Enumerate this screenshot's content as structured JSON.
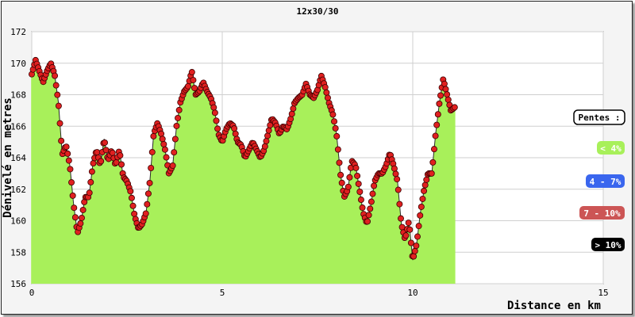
{
  "chart_data": {
    "type": "area",
    "title": "12x30/30",
    "xlabel": "Distance en km",
    "ylabel": "Dénivelé en metres",
    "xlim": [
      0,
      15
    ],
    "ylim": [
      156,
      172
    ],
    "x_ticks": [
      "0",
      "5",
      "10",
      "15"
    ],
    "y_ticks": [
      "156",
      "158",
      "160",
      "162",
      "164",
      "166",
      "168",
      "170",
      "172"
    ],
    "grid": true,
    "legend_position": "right",
    "legend_title": "Pentes :",
    "legend": [
      {
        "label": "< 4%",
        "color": "#a8f05a",
        "text_color": "#ffffff"
      },
      {
        "label": "4 - 7%",
        "color": "#3a66ee",
        "text_color": "#ffffff"
      },
      {
        "label": "7 - 10%",
        "color": "#cc5555",
        "text_color": "#ffffff"
      },
      {
        "label": "> 10%",
        "color": "#000000",
        "text_color": "#ffffff"
      }
    ],
    "series": [
      {
        "profile": [
          [
            0.0,
            169.3
          ],
          [
            0.1,
            170.2
          ],
          [
            0.2,
            169.5
          ],
          [
            0.3,
            168.8
          ],
          [
            0.4,
            169.5
          ],
          [
            0.5,
            170.0
          ],
          [
            0.6,
            169.3
          ],
          [
            0.7,
            167.5
          ],
          [
            0.8,
            164.2
          ],
          [
            0.9,
            164.8
          ],
          [
            1.0,
            163.5
          ],
          [
            1.1,
            161.0
          ],
          [
            1.2,
            159.2
          ],
          [
            1.3,
            160.0
          ],
          [
            1.4,
            161.5
          ],
          [
            1.5,
            161.5
          ],
          [
            1.6,
            163.5
          ],
          [
            1.7,
            164.5
          ],
          [
            1.8,
            163.5
          ],
          [
            1.9,
            165.2
          ],
          [
            2.0,
            163.8
          ],
          [
            2.1,
            164.5
          ],
          [
            2.2,
            163.5
          ],
          [
            2.3,
            164.5
          ],
          [
            2.4,
            162.8
          ],
          [
            2.5,
            162.5
          ],
          [
            2.6,
            161.8
          ],
          [
            2.7,
            160.3
          ],
          [
            2.8,
            159.5
          ],
          [
            2.9,
            159.8
          ],
          [
            3.0,
            160.5
          ],
          [
            3.1,
            162.5
          ],
          [
            3.2,
            165.5
          ],
          [
            3.3,
            166.2
          ],
          [
            3.4,
            165.5
          ],
          [
            3.5,
            164.5
          ],
          [
            3.6,
            163.0
          ],
          [
            3.7,
            163.5
          ],
          [
            3.8,
            166.0
          ],
          [
            3.9,
            167.5
          ],
          [
            4.0,
            168.2
          ],
          [
            4.1,
            168.5
          ],
          [
            4.2,
            169.5
          ],
          [
            4.3,
            168.0
          ],
          [
            4.4,
            168.2
          ],
          [
            4.5,
            168.8
          ],
          [
            4.6,
            168.2
          ],
          [
            4.7,
            167.8
          ],
          [
            4.8,
            167.0
          ],
          [
            4.9,
            165.5
          ],
          [
            5.0,
            165.0
          ],
          [
            5.1,
            165.8
          ],
          [
            5.2,
            166.2
          ],
          [
            5.3,
            166.0
          ],
          [
            5.4,
            165.0
          ],
          [
            5.5,
            164.8
          ],
          [
            5.6,
            164.0
          ],
          [
            5.7,
            164.5
          ],
          [
            5.8,
            165.0
          ],
          [
            5.9,
            164.5
          ],
          [
            6.0,
            164.0
          ],
          [
            6.1,
            164.5
          ],
          [
            6.2,
            165.5
          ],
          [
            6.3,
            166.5
          ],
          [
            6.4,
            166.2
          ],
          [
            6.5,
            165.5
          ],
          [
            6.6,
            166.0
          ],
          [
            6.7,
            165.8
          ],
          [
            6.8,
            166.5
          ],
          [
            6.9,
            167.5
          ],
          [
            7.0,
            167.8
          ],
          [
            7.1,
            168.0
          ],
          [
            7.2,
            168.7
          ],
          [
            7.3,
            168.0
          ],
          [
            7.4,
            167.8
          ],
          [
            7.5,
            168.3
          ],
          [
            7.6,
            169.2
          ],
          [
            7.7,
            168.5
          ],
          [
            7.8,
            167.5
          ],
          [
            7.9,
            166.8
          ],
          [
            8.0,
            165.5
          ],
          [
            8.1,
            163.0
          ],
          [
            8.2,
            161.5
          ],
          [
            8.3,
            162.0
          ],
          [
            8.4,
            163.8
          ],
          [
            8.5,
            163.5
          ],
          [
            8.6,
            162.0
          ],
          [
            8.7,
            160.5
          ],
          [
            8.8,
            159.8
          ],
          [
            8.9,
            161.0
          ],
          [
            9.0,
            162.5
          ],
          [
            9.1,
            163.0
          ],
          [
            9.2,
            163.0
          ],
          [
            9.3,
            163.5
          ],
          [
            9.4,
            164.3
          ],
          [
            9.5,
            163.5
          ],
          [
            9.6,
            162.5
          ],
          [
            9.7,
            159.8
          ],
          [
            9.8,
            158.8
          ],
          [
            9.9,
            160.0
          ],
          [
            10.0,
            157.5
          ],
          [
            10.1,
            158.5
          ],
          [
            10.2,
            160.5
          ],
          [
            10.3,
            162.0
          ],
          [
            10.4,
            163.0
          ],
          [
            10.5,
            163.0
          ],
          [
            10.6,
            165.5
          ],
          [
            10.7,
            167.5
          ],
          [
            10.8,
            169.0
          ],
          [
            10.9,
            168.0
          ],
          [
            11.0,
            167.0
          ],
          [
            11.1,
            167.2
          ]
        ]
      }
    ]
  }
}
